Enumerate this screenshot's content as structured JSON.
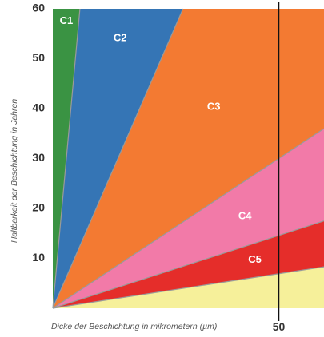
{
  "chart_data": {
    "type": "area",
    "xlabel": "Dicke der Beschichtung in mikrometern (µm)",
    "ylabel": "Haltbarkeit der Beschichtung in Jahren",
    "xlim": [
      0,
      60
    ],
    "ylim": [
      0,
      60
    ],
    "y_ticks": [
      "10",
      "20",
      "30",
      "40",
      "50",
      "60"
    ],
    "x_ticks": [
      "50"
    ],
    "marker_x": 50,
    "grid": false,
    "regions": [
      {
        "name": "C1",
        "color": "#3a9343",
        "upper_line": null
      },
      {
        "name": "C2",
        "color": "#3575b5",
        "upper_line": [
          [
            0,
            0
          ],
          [
            6,
            60
          ]
        ]
      },
      {
        "name": "C3",
        "color": "#f37a32",
        "upper_line": [
          [
            0,
            0
          ],
          [
            28.8,
            60
          ]
        ]
      },
      {
        "name": "C4",
        "color": "#f27aa8",
        "upper_line": [
          [
            0,
            0
          ],
          [
            60,
            36
          ]
        ]
      },
      {
        "name": "C5",
        "color": "#e52d2a",
        "upper_line": [
          [
            0,
            0
          ],
          [
            60,
            17.5
          ]
        ]
      },
      {
        "name": "",
        "color": "#f6f09a",
        "upper_line": [
          [
            0,
            0
          ],
          [
            60,
            8.3
          ]
        ]
      }
    ],
    "labels": [
      {
        "text": "C1",
        "x": 3,
        "y": 57.5
      },
      {
        "text": "C2",
        "x": 14.9,
        "y": 54.1
      },
      {
        "text": "C3",
        "x": 35.6,
        "y": 40.3
      },
      {
        "text": "C4",
        "x": 42.5,
        "y": 18.4
      },
      {
        "text": "C5",
        "x": 44.7,
        "y": 9.7
      }
    ]
  }
}
